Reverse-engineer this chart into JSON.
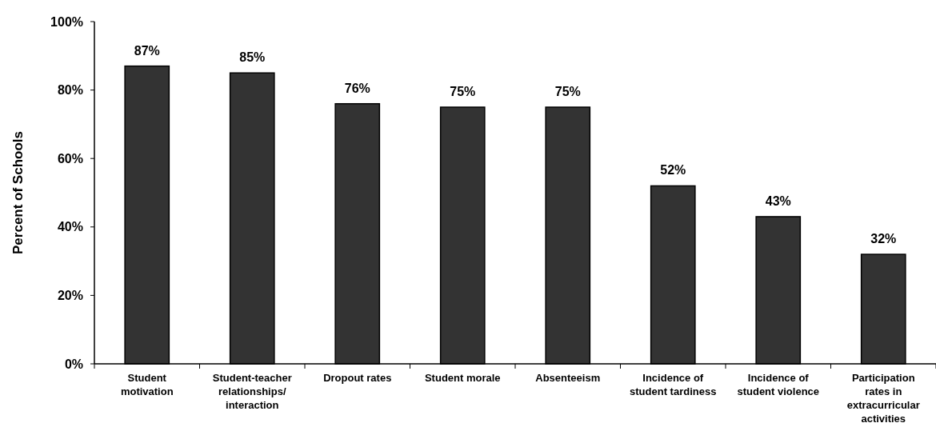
{
  "chart_data": {
    "type": "bar",
    "ylabel": "Percent of Schools",
    "categories": [
      "Student motivation",
      "Student-teacher relationships/ interaction",
      "Dropout rates",
      "Student morale",
      "Absenteeism",
      "Incidence of student tardiness",
      "Incidence of student violence",
      "Participation rates in extracurricular activities"
    ],
    "values": [
      87,
      85,
      76,
      75,
      75,
      52,
      43,
      32
    ],
    "value_labels": [
      "87%",
      "85%",
      "76%",
      "75%",
      "75%",
      "52%",
      "43%",
      "32%"
    ],
    "color": "#333333",
    "ylim": [
      0,
      100
    ],
    "yticks": [
      {
        "value": 0,
        "label": "0%"
      },
      {
        "value": 20,
        "label": "20%"
      },
      {
        "value": 40,
        "label": "40%"
      },
      {
        "value": 60,
        "label": "60%"
      },
      {
        "value": 80,
        "label": "80%"
      },
      {
        "value": 100,
        "label": "100%"
      }
    ],
    "grid": false
  }
}
